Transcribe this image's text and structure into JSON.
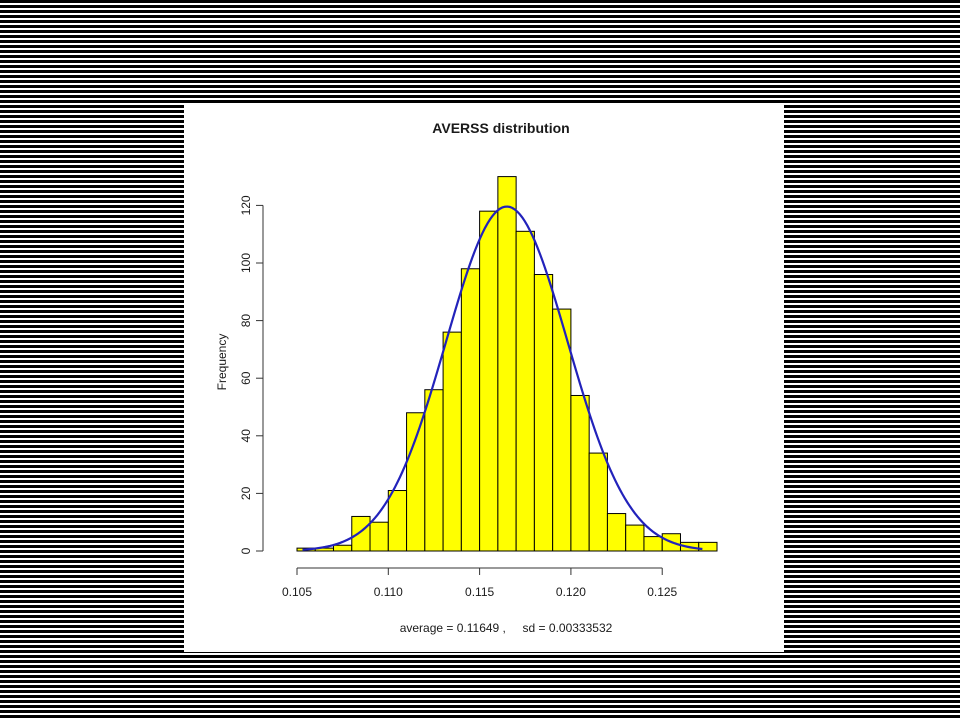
{
  "chart_data": {
    "type": "bar",
    "title": "AVERSS distribution",
    "xlabel": "average = 0.11649 ,     sd = 0.00333532",
    "ylabel": "Frequency",
    "xlim": [
      0.105,
      0.128
    ],
    "ylim": [
      0,
      130
    ],
    "x_ticks": [
      0.105,
      0.11,
      0.115,
      0.12,
      0.125
    ],
    "x_tick_labels": [
      "0.105",
      "0.110",
      "0.115",
      "0.120",
      "0.125"
    ],
    "y_ticks": [
      0,
      20,
      40,
      60,
      80,
      100,
      120
    ],
    "y_tick_labels": [
      "0",
      "20",
      "40",
      "60",
      "80",
      "100",
      "120"
    ],
    "bin_width": 0.001,
    "bins_start": [
      0.105,
      0.106,
      0.107,
      0.108,
      0.109,
      0.11,
      0.111,
      0.112,
      0.113,
      0.114,
      0.115,
      0.116,
      0.117,
      0.118,
      0.119,
      0.12,
      0.121,
      0.122,
      0.123,
      0.124,
      0.125,
      0.126,
      0.127
    ],
    "values": [
      1,
      1,
      2,
      12,
      10,
      21,
      48,
      56,
      76,
      98,
      118,
      130,
      111,
      96,
      84,
      54,
      34,
      13,
      9,
      5,
      6,
      3,
      3
    ],
    "bar_color": "#ffff00",
    "bar_edge_color": "#000000",
    "curve": {
      "type": "normal_density",
      "mean": 0.11649,
      "sd": 0.00333532,
      "peak_frequency": 119.6,
      "x_range": [
        0.1053,
        0.1272
      ],
      "color": "#2222bb"
    },
    "grid": false,
    "legend": "none"
  }
}
